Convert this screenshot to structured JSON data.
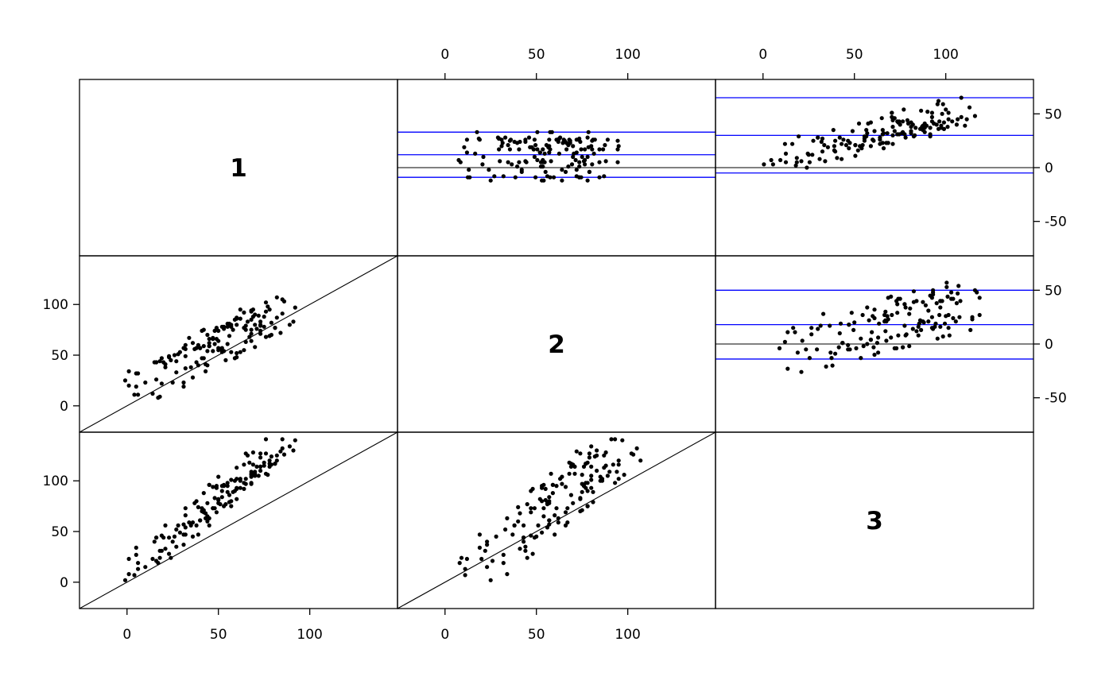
{
  "figure": {
    "background": "#ffffff",
    "description": "3x3 scatterplot matrix comparing three measurement methods: lower-triangle panels are pairwise scatter plots with an identity line, upper-triangle panels are Bland-Altman difference plots with a black zero line and blue mean/limits-of-agreement lines, diagonal panels show the method number"
  },
  "chart_data": {
    "type": "scatter",
    "subtype": "pairs-matrix-method-comparison",
    "variables": [
      "1",
      "2",
      "3"
    ],
    "n_points": 150,
    "value_domain": [
      -26,
      148
    ],
    "diff_domain": [
      -82,
      82
    ],
    "grid": {
      "rows": 3,
      "cols": 3
    },
    "axes": {
      "top": {
        "cols": [
          1,
          2
        ],
        "ticks": [
          0,
          50,
          100
        ]
      },
      "bottom": {
        "cols": [
          0,
          1
        ],
        "ticks": [
          0,
          50,
          100
        ]
      },
      "left": {
        "rows": [
          1,
          2
        ],
        "ticks": [
          0,
          50,
          100
        ]
      },
      "right": {
        "rows": [
          0,
          1
        ],
        "ticks": [
          -50,
          0,
          50
        ]
      }
    },
    "colors": {
      "points": "#000000",
      "identity_line": "#000000",
      "zero_line": "#000000",
      "loa_line": "#0000ff",
      "border": "#000000"
    },
    "panels": [
      {
        "row": 0,
        "col": 0,
        "type": "label",
        "text": "1"
      },
      {
        "row": 0,
        "col": 1,
        "type": "bland_altman",
        "pair": [
          1,
          2
        ],
        "loa_lines": [
          -9,
          12,
          33
        ],
        "zero_line": 0
      },
      {
        "row": 0,
        "col": 2,
        "type": "bland_altman",
        "pair": [
          1,
          3
        ],
        "loa_lines": [
          -5,
          30,
          65
        ],
        "zero_line": 0
      },
      {
        "row": 1,
        "col": 0,
        "type": "scatter",
        "pair": [
          1,
          2
        ],
        "identity_line": true
      },
      {
        "row": 1,
        "col": 1,
        "type": "label",
        "text": "2"
      },
      {
        "row": 1,
        "col": 2,
        "type": "bland_altman",
        "pair": [
          2,
          3
        ],
        "loa_lines": [
          -14,
          18,
          50
        ],
        "zero_line": 0
      },
      {
        "row": 2,
        "col": 0,
        "type": "scatter",
        "pair": [
          1,
          3
        ],
        "identity_line": true
      },
      {
        "row": 2,
        "col": 1,
        "type": "scatter",
        "pair": [
          2,
          3
        ],
        "identity_line": true
      },
      {
        "row": 2,
        "col": 2,
        "type": "label",
        "text": "3"
      }
    ],
    "series": {
      "method1": [
        6,
        -1,
        17,
        1,
        10,
        14,
        1,
        4,
        18,
        6,
        21,
        16,
        32,
        5,
        27,
        27,
        23,
        31,
        23,
        21,
        35,
        29,
        31,
        28,
        24,
        44,
        16,
        39,
        15,
        40,
        42,
        36,
        54,
        38,
        48,
        43,
        41,
        47,
        62,
        31,
        60,
        44,
        51,
        45,
        45,
        55,
        48,
        60,
        56,
        42,
        68,
        50,
        59,
        55,
        57,
        57,
        49,
        52,
        49,
        58,
        50,
        55,
        64,
        47,
        64,
        65,
        42,
        50,
        78,
        52,
        70,
        65,
        82,
        50,
        72,
        73,
        69,
        76,
        68,
        66,
        79,
        62,
        84,
        57,
        77,
        81,
        60,
        67,
        64,
        78,
        71,
        68,
        78,
        69,
        75,
        73,
        62,
        73,
        89,
        60,
        85,
        73,
        92,
        65,
        86,
        85,
        76,
        91,
        82,
        76,
        19,
        32,
        70,
        20,
        45,
        81,
        5,
        53,
        19,
        68,
        52,
        18,
        79,
        37,
        56,
        25,
        34,
        68,
        43,
        44,
        47,
        70,
        38,
        45,
        49,
        41,
        59,
        36,
        53,
        32,
        75,
        26,
        60,
        53,
        39,
        68,
        16,
        73,
        32,
        40
      ],
      "method2": [
        11,
        25,
        8,
        20,
        23,
        12,
        34,
        11,
        9,
        32,
        41,
        26,
        37,
        19,
        44,
        33,
        49,
        23,
        48,
        38,
        38,
        53,
        19,
        51,
        45,
        40,
        43,
        40,
        43,
        57,
        47,
        62,
        45,
        57,
        61,
        41,
        74,
        54,
        53,
        57,
        80,
        54,
        56,
        59,
        62,
        61,
        74,
        52,
        81,
        59,
        71,
        74,
        47,
        78,
        78,
        53,
        76,
        53,
        77,
        75,
        55,
        81,
        55,
        66,
        77,
        63,
        75,
        57,
        69,
        78,
        90,
        75,
        87,
        64,
        89,
        79,
        95,
        68,
        93,
        83,
        82,
        86,
        72,
        80,
        98,
        77,
        87,
        68,
        92,
        95,
        76,
        94,
        69,
        88,
        88,
        71,
        95,
        80,
        80,
        86,
        105,
        83,
        97,
        79,
        103,
        91,
        102,
        83,
        107,
        93,
        22,
        56,
        58,
        43,
        66,
        77,
        32,
        54,
        47,
        85,
        57,
        44,
        70,
        56,
        69,
        23,
        67,
        75,
        34,
        70,
        67,
        80,
        43,
        59,
        66,
        47,
        85,
        28,
        78,
        49,
        78,
        50,
        48,
        76,
        60,
        64,
        43,
        74,
        60,
        57
      ],
      "method3": [
        13,
        2,
        19,
        23,
        15,
        23,
        8,
        7,
        24,
        19,
        33,
        21,
        47,
        34,
        35,
        52,
        44,
        37,
        28,
        56,
        56,
        49,
        47,
        56,
        24,
        60,
        44,
        74,
        40,
        61,
        69,
        59,
        77,
        80,
        73,
        68,
        70,
        73,
        93,
        57,
        93,
        65,
        77,
        96,
        63,
        95,
        83,
        82,
        79,
        88,
        107,
        82,
        90,
        98,
        75,
        80,
        95,
        95,
        93,
        89,
        81,
        89,
        92,
        94,
        98,
        102,
        71,
        78,
        117,
        90,
        109,
        97,
        125,
        104,
        105,
        123,
        116,
        107,
        98,
        125,
        124,
        100,
        129,
        101,
        106,
        117,
        113,
        118,
        116,
        120,
        114,
        109,
        114,
        128,
        115,
        114,
        102,
        114,
        134,
        102,
        132,
        110,
        140,
        127,
        126,
        141,
        127,
        130,
        120,
        141,
        31,
        54,
        107,
        44,
        56,
        117,
        27,
        96,
        46,
        104,
        84,
        31,
        116,
        78,
        86,
        40,
        59,
        106,
        63,
        78,
        73,
        105,
        56,
        96,
        69,
        73,
        100,
        45,
        75,
        73,
        118,
        45,
        92,
        95,
        47,
        97,
        44,
        127,
        66,
        61
      ]
    }
  }
}
